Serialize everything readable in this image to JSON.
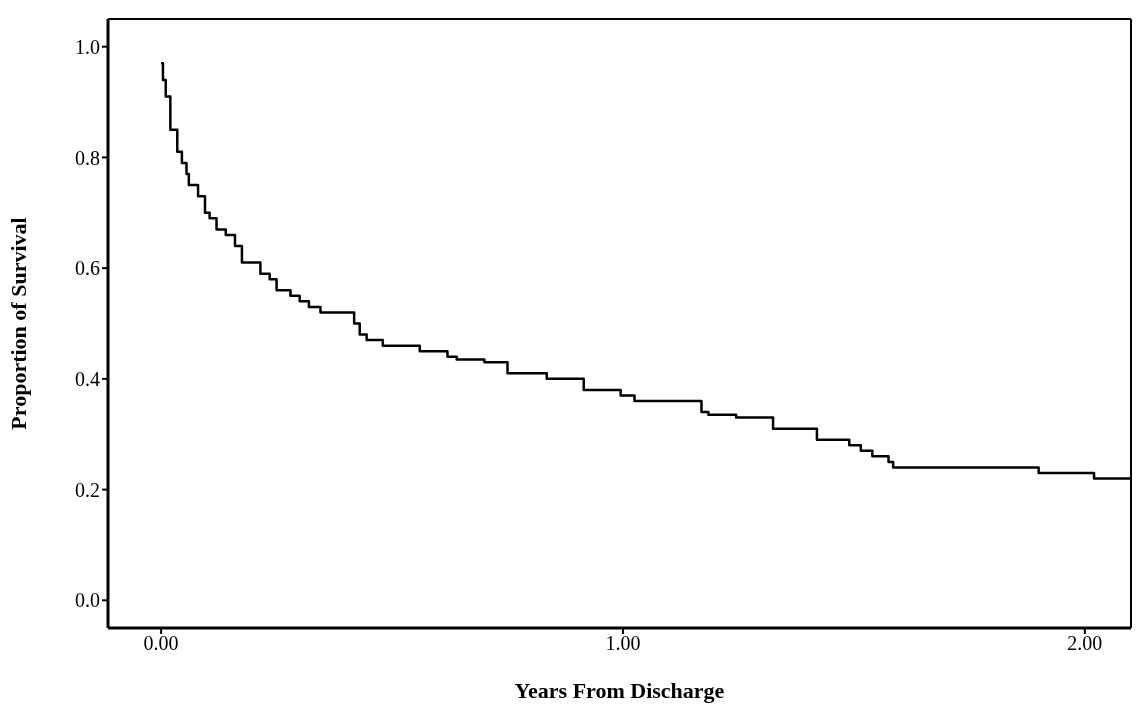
{
  "chart_data": {
    "type": "step",
    "xlabel": "Years From Discharge",
    "ylabel": "Proportion of Survival",
    "color": "#000000",
    "x": [
      0,
      0.004,
      0.01,
      0.02,
      0.035,
      0.045,
      0.055,
      0.06,
      0.08,
      0.095,
      0.105,
      0.12,
      0.14,
      0.16,
      0.175,
      0.215,
      0.235,
      0.25,
      0.28,
      0.3,
      0.32,
      0.345,
      0.418,
      0.43,
      0.445,
      0.48,
      0.56,
      0.62,
      0.64,
      0.7,
      0.75,
      0.835,
      0.915,
      0.995,
      1.025,
      1.06,
      1.17,
      1.185,
      1.245,
      1.325,
      1.385,
      1.42,
      1.49,
      1.515,
      1.54,
      1.575,
      1.585,
      1.9,
      2.02,
      2.1
    ],
    "values": [
      0.97,
      0.94,
      0.91,
      0.85,
      0.81,
      0.79,
      0.77,
      0.75,
      0.73,
      0.7,
      0.69,
      0.67,
      0.66,
      0.64,
      0.61,
      0.59,
      0.58,
      0.56,
      0.55,
      0.54,
      0.53,
      0.52,
      0.5,
      0.48,
      0.47,
      0.46,
      0.45,
      0.44,
      0.435,
      0.43,
      0.41,
      0.4,
      0.38,
      0.37,
      0.36,
      0.36,
      0.34,
      0.335,
      0.33,
      0.31,
      0.31,
      0.29,
      0.28,
      0.27,
      0.26,
      0.25,
      0.24,
      0.23,
      0.22,
      0.22
    ],
    "xlim": [
      -0.115,
      2.1
    ],
    "ylim": [
      -0.05,
      1.05
    ],
    "xticks": [
      {
        "value": 0,
        "label": "0.00"
      },
      {
        "value": 1,
        "label": "1.00"
      },
      {
        "value": 2,
        "label": "2.00"
      }
    ],
    "yticks": [
      {
        "value": 0,
        "label": "0.0"
      },
      {
        "value": 0.2,
        "label": "0.2"
      },
      {
        "value": 0.4,
        "label": "0.4"
      },
      {
        "value": 0.6,
        "label": "0.6"
      },
      {
        "value": 0.8,
        "label": "0.8"
      },
      {
        "value": 1,
        "label": "1.0"
      }
    ]
  }
}
